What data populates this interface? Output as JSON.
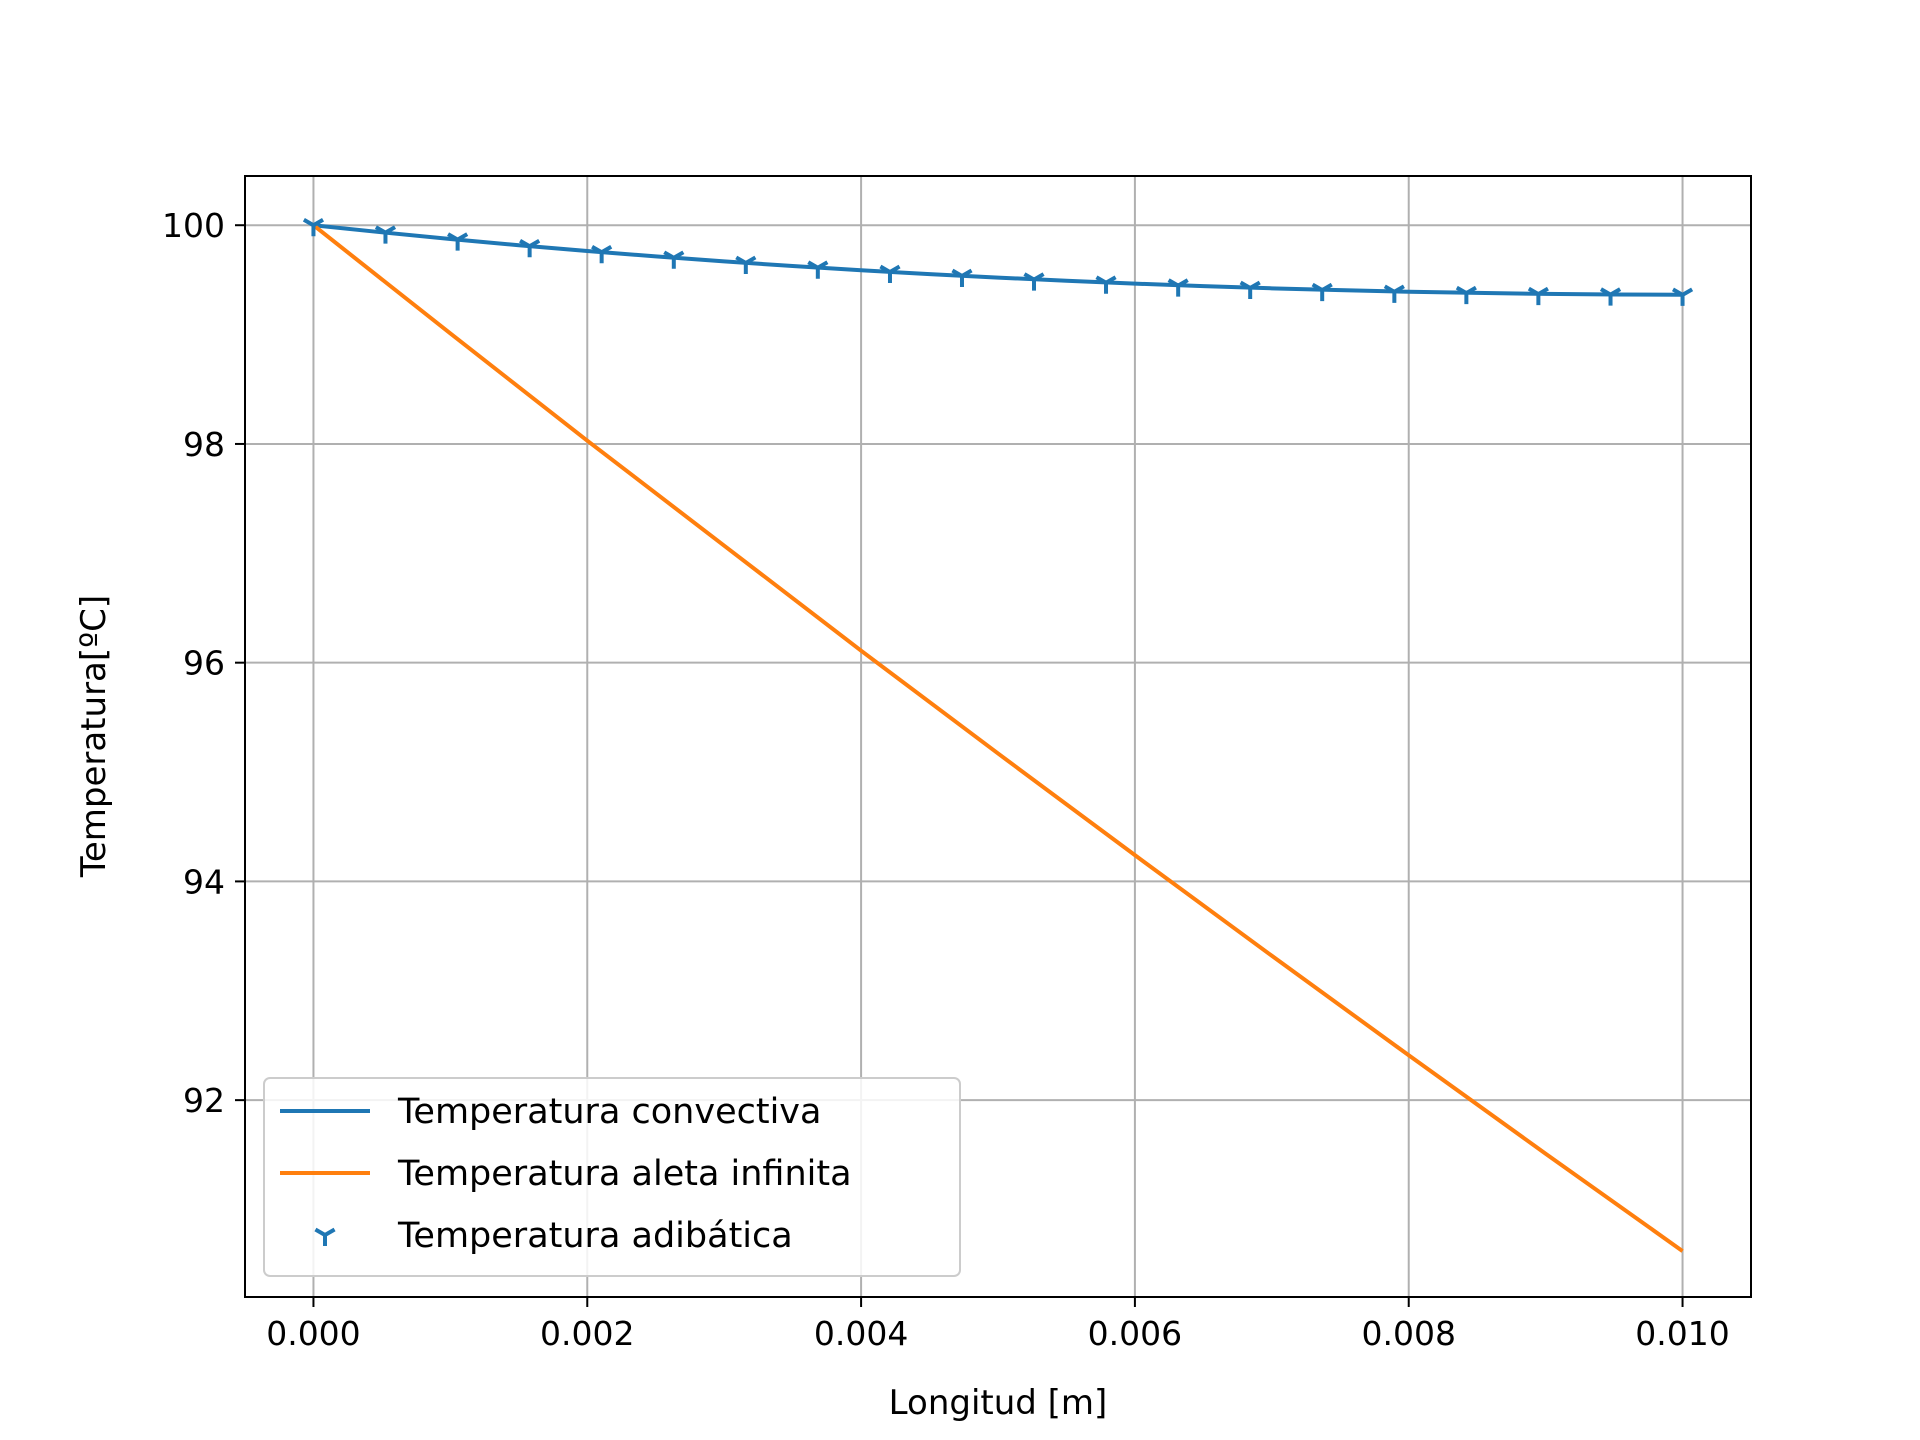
{
  "chart_data": {
    "type": "line",
    "title": "",
    "xlabel": "Longitud [m]",
    "ylabel": "Temperatura[ºC]",
    "xlim": [
      -0.0005,
      0.0105
    ],
    "ylim": [
      90.2,
      100.45
    ],
    "xticks": [
      0.0,
      0.002,
      0.004,
      0.006,
      0.008,
      0.01
    ],
    "xtick_labels": [
      "0.000",
      "0.002",
      "0.004",
      "0.006",
      "0.008",
      "0.010"
    ],
    "yticks": [
      92,
      94,
      96,
      98,
      100
    ],
    "ytick_labels": [
      "92",
      "94",
      "96",
      "98",
      "100"
    ],
    "grid": true,
    "legend_position": "bottom-left",
    "series": [
      {
        "name": "Temperatura convectiva",
        "kind": "line",
        "color": "#1f77b4",
        "x": [
          0.0,
          0.0005,
          0.001,
          0.0015,
          0.002,
          0.0025,
          0.003,
          0.0035,
          0.004,
          0.0045,
          0.005,
          0.0055,
          0.006,
          0.0065,
          0.007,
          0.0075,
          0.008,
          0.0085,
          0.009,
          0.0095,
          0.01
        ],
        "y": [
          100.0,
          99.935,
          99.874,
          99.817,
          99.764,
          99.715,
          99.669,
          99.627,
          99.588,
          99.553,
          99.521,
          99.492,
          99.466,
          99.443,
          99.423,
          99.406,
          99.392,
          99.381,
          99.372,
          99.367,
          99.364
        ]
      },
      {
        "name": "Temperatura aleta infinita",
        "kind": "line",
        "color": "#ff7f0e",
        "x": [
          0.0,
          0.001,
          0.002,
          0.003,
          0.004,
          0.005,
          0.006,
          0.007,
          0.008,
          0.009,
          0.01
        ],
        "y": [
          100.0,
          99.01,
          98.03,
          97.07,
          96.11,
          95.17,
          94.24,
          93.32,
          92.41,
          91.51,
          90.62
        ]
      },
      {
        "name": "Temperatura adibática",
        "kind": "scatter",
        "marker": "tri-down",
        "color": "#1f77b4",
        "x": [
          0.0,
          0.000526,
          0.001053,
          0.001579,
          0.002105,
          0.002632,
          0.003158,
          0.003684,
          0.004211,
          0.004737,
          0.005263,
          0.005789,
          0.006316,
          0.006842,
          0.007368,
          0.007895,
          0.008421,
          0.008947,
          0.009474,
          0.01
        ],
        "y": [
          100.0,
          99.932,
          99.868,
          99.808,
          99.753,
          99.702,
          99.655,
          99.611,
          99.572,
          99.536,
          99.503,
          99.474,
          99.448,
          99.426,
          99.407,
          99.391,
          99.379,
          99.37,
          99.365,
          99.363
        ]
      }
    ]
  }
}
